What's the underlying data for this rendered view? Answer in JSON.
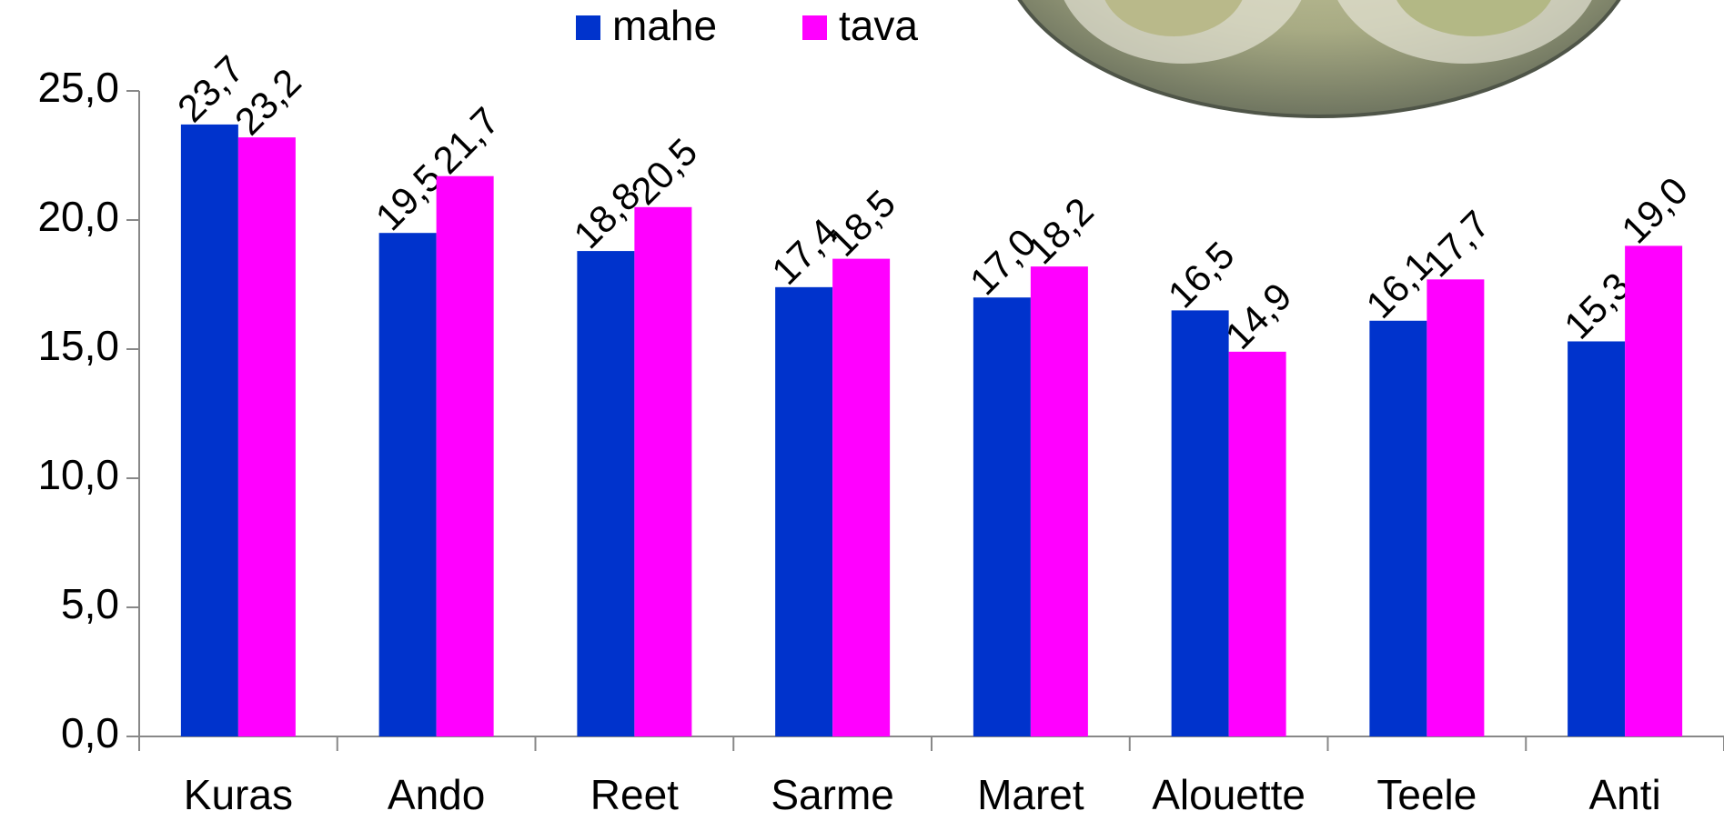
{
  "chart_data": {
    "type": "bar",
    "categories": [
      "Kuras",
      "Ando",
      "Reet",
      "Sarme",
      "Maret",
      "Alouette",
      "Teele",
      "Anti"
    ],
    "series": [
      {
        "name": "mahe",
        "color": "#0033cc",
        "values": [
          23.7,
          19.5,
          18.8,
          17.4,
          17.0,
          16.5,
          16.1,
          15.3
        ],
        "value_labels": [
          "23,7",
          "19,5",
          "18,8",
          "17,4",
          "17,0",
          "16,5",
          "16,1",
          "15,3"
        ]
      },
      {
        "name": "tava",
        "color": "#ff00ff",
        "values": [
          23.2,
          21.7,
          20.5,
          18.5,
          18.2,
          14.9,
          17.7,
          19.0
        ],
        "value_labels": [
          "23,2",
          "21,7",
          "20,5",
          "18,5",
          "18,2",
          "14,9",
          "17,7",
          "19,0"
        ]
      }
    ],
    "ylim": [
      0,
      25
    ],
    "yticks": [
      {
        "value": 0,
        "label": "0,0"
      },
      {
        "value": 5,
        "label": "5,0"
      },
      {
        "value": 10,
        "label": "10,0"
      },
      {
        "value": 15,
        "label": "15,0"
      },
      {
        "value": 20,
        "label": "20,0"
      },
      {
        "value": 25,
        "label": "25,0"
      }
    ],
    "grid": false
  }
}
